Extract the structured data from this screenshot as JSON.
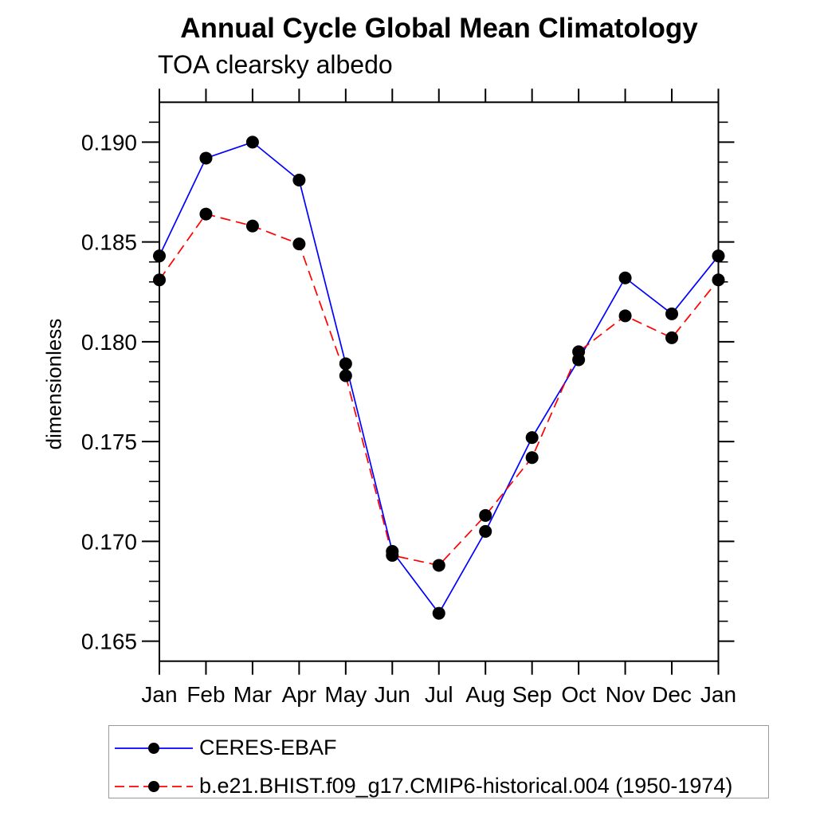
{
  "title": "Annual Cycle Global Mean Climatology",
  "subtitle": "TOA clearsky albedo",
  "chart_data": {
    "type": "line",
    "title": "Annual Cycle Global Mean Climatology",
    "subtitle": "TOA clearsky albedo",
    "xlabel": "",
    "ylabel": "dimensionless",
    "x_categories": [
      "Jan",
      "Feb",
      "Mar",
      "Apr",
      "May",
      "Jun",
      "Jul",
      "Aug",
      "Sep",
      "Oct",
      "Nov",
      "Dec",
      "Jan"
    ],
    "ylim": [
      0.164,
      0.192
    ],
    "y_major_ticks": [
      0.165,
      0.17,
      0.175,
      0.18,
      0.185,
      0.19
    ],
    "y_minor_step": 0.001,
    "grid": false,
    "legend_position": "bottom-left-box",
    "frame_color": "#000000",
    "series": [
      {
        "name": "CERES-EBAF",
        "color": "#0000ff",
        "line_style": "solid",
        "marker": "circle",
        "marker_color": "#000000",
        "values": [
          0.1843,
          0.1892,
          0.19,
          0.1881,
          0.1789,
          0.1695,
          0.1664,
          0.1705,
          0.1752,
          0.1791,
          0.1832,
          0.1814,
          0.1843
        ]
      },
      {
        "name": "b.e21.BHIST.f09_g17.CMIP6-historical.004 (1950-1974)",
        "color": "#ff0000",
        "line_style": "dashed",
        "marker": "circle",
        "marker_color": "#000000",
        "values": [
          0.1831,
          0.1864,
          0.1858,
          0.1849,
          0.1783,
          0.1693,
          0.1688,
          0.1713,
          0.1742,
          0.1795,
          0.1813,
          0.1802,
          0.1831
        ]
      }
    ]
  }
}
